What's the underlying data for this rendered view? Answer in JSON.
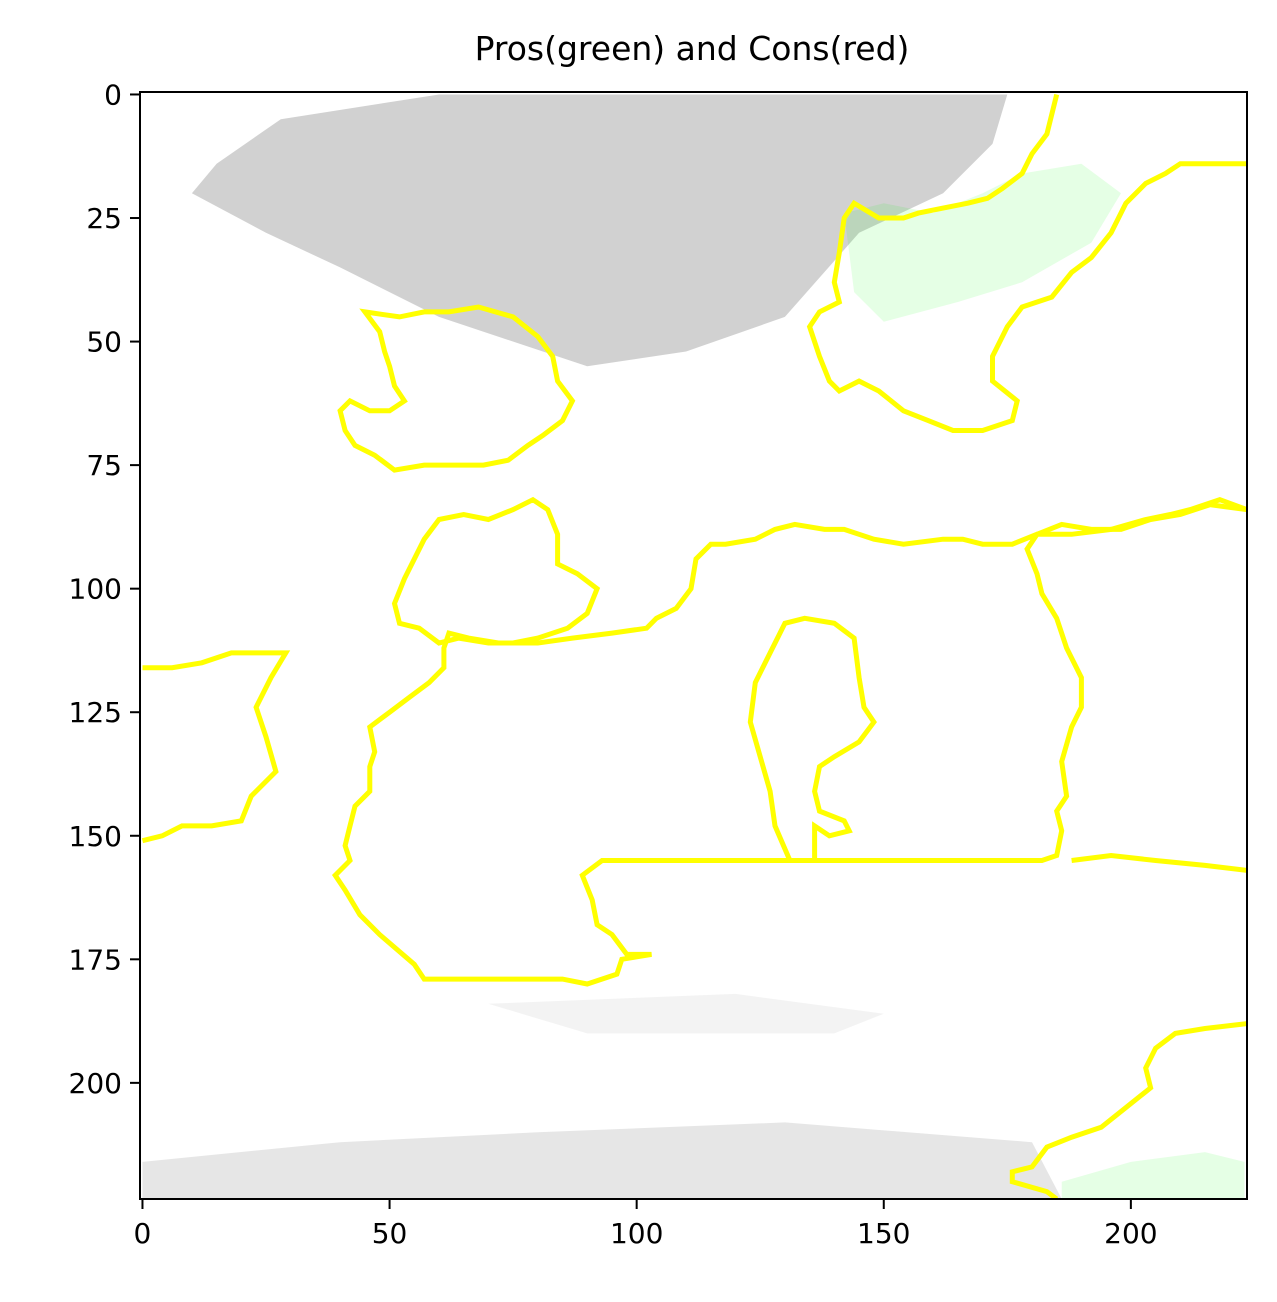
{
  "chart_data": {
    "type": "heatmap",
    "title": "Pros(green) and Cons(red)",
    "xlim": [
      -0.5,
      223.5
    ],
    "ylim": [
      223.5,
      -0.5
    ],
    "x_ticks": [
      0,
      50,
      100,
      150,
      200
    ],
    "y_ticks": [
      0,
      25,
      50,
      75,
      100,
      125,
      150,
      175,
      200
    ],
    "grid": false,
    "boundary_color": "#ffff00",
    "pros_color": "#00ff00",
    "cons_color": "#ff0000",
    "background_color": "#ffffff",
    "shading_color": "#9a9a9a",
    "shading_regions": [
      {
        "name": "top-cloud-band",
        "pts": [
          [
            15,
            14
          ],
          [
            28,
            5
          ],
          [
            60,
            0
          ],
          [
            160,
            0
          ],
          [
            175,
            0
          ],
          [
            172,
            10
          ],
          [
            162,
            20
          ],
          [
            145,
            28
          ],
          [
            130,
            45
          ],
          [
            110,
            52
          ],
          [
            90,
            55
          ],
          [
            60,
            45
          ],
          [
            40,
            35
          ],
          [
            25,
            28
          ],
          [
            10,
            20
          ]
        ],
        "opacity": 0.45
      },
      {
        "name": "bottom-cloud-band",
        "pts": [
          [
            0,
            216
          ],
          [
            40,
            212
          ],
          [
            80,
            210
          ],
          [
            130,
            208
          ],
          [
            180,
            212
          ],
          [
            186,
            223.5
          ],
          [
            0,
            223.5
          ]
        ],
        "opacity": 0.25
      },
      {
        "name": "mid-faint-band",
        "pts": [
          [
            70,
            184
          ],
          [
            120,
            182
          ],
          [
            150,
            186
          ],
          [
            140,
            190
          ],
          [
            90,
            190
          ]
        ],
        "opacity": 0.12
      }
    ],
    "pros_regions": [
      {
        "name": "pros-upper-right",
        "pts": [
          [
            142,
            24
          ],
          [
            150,
            22
          ],
          [
            160,
            24
          ],
          [
            170,
            20
          ],
          [
            178,
            16
          ],
          [
            190,
            14
          ],
          [
            198,
            20
          ],
          [
            192,
            30
          ],
          [
            178,
            38
          ],
          [
            165,
            42
          ],
          [
            150,
            46
          ],
          [
            144,
            40
          ]
        ],
        "opacity": 0.1
      },
      {
        "name": "pros-lower-right",
        "pts": [
          [
            186,
            220
          ],
          [
            200,
            216
          ],
          [
            215,
            214
          ],
          [
            223,
            216
          ],
          [
            223,
            223.5
          ],
          [
            186,
            223.5
          ]
        ],
        "opacity": 0.1
      }
    ],
    "boundaries": [
      {
        "name": "boundary-top-right-lobe",
        "closed": false,
        "pts": [
          [
            185,
            0
          ],
          [
            183,
            8
          ],
          [
            180,
            12
          ],
          [
            178,
            16
          ],
          [
            174,
            19
          ],
          [
            171,
            21
          ],
          [
            167,
            22
          ],
          [
            162,
            23
          ],
          [
            157,
            24
          ],
          [
            154,
            25
          ],
          [
            149,
            25
          ],
          [
            144,
            22
          ],
          [
            142,
            25
          ],
          [
            141,
            32
          ],
          [
            140,
            38
          ],
          [
            141,
            42
          ],
          [
            137,
            44
          ],
          [
            135,
            47
          ],
          [
            137,
            53
          ],
          [
            139,
            58
          ],
          [
            141,
            60
          ],
          [
            145,
            58
          ],
          [
            149,
            60
          ],
          [
            154,
            64
          ],
          [
            159,
            66
          ],
          [
            164,
            68
          ],
          [
            170,
            68
          ],
          [
            176,
            66
          ],
          [
            177,
            62
          ],
          [
            172,
            58
          ],
          [
            172,
            53
          ],
          [
            175,
            47
          ],
          [
            178,
            43
          ],
          [
            184,
            41
          ],
          [
            188,
            36
          ],
          [
            192,
            33
          ],
          [
            196,
            28
          ],
          [
            199,
            22
          ],
          [
            203,
            18
          ],
          [
            207,
            16
          ],
          [
            210,
            14
          ],
          [
            214,
            14
          ],
          [
            218,
            14
          ],
          [
            223.5,
            14
          ]
        ]
      },
      {
        "name": "boundary-left-blob",
        "closed": true,
        "pts": [
          [
            45,
            44
          ],
          [
            52,
            45
          ],
          [
            57,
            44
          ],
          [
            62,
            44
          ],
          [
            68,
            43
          ],
          [
            75,
            45
          ],
          [
            80,
            49
          ],
          [
            83,
            53
          ],
          [
            84,
            58
          ],
          [
            87,
            62
          ],
          [
            85,
            66
          ],
          [
            81,
            69
          ],
          [
            78,
            71
          ],
          [
            74,
            74
          ],
          [
            69,
            75
          ],
          [
            64,
            75
          ],
          [
            57,
            75
          ],
          [
            51,
            76
          ],
          [
            47,
            73
          ],
          [
            43,
            71
          ],
          [
            41,
            68
          ],
          [
            40,
            64
          ],
          [
            42,
            62
          ],
          [
            46,
            64
          ],
          [
            50,
            64
          ],
          [
            53,
            62
          ],
          [
            51,
            59
          ],
          [
            50,
            55
          ],
          [
            49,
            52
          ],
          [
            48,
            48
          ]
        ]
      },
      {
        "name": "boundary-mid-left-blob",
        "closed": true,
        "pts": [
          [
            60,
            86
          ],
          [
            65,
            85
          ],
          [
            70,
            86
          ],
          [
            75,
            84
          ],
          [
            79,
            82
          ],
          [
            82,
            84
          ],
          [
            84,
            89
          ],
          [
            84,
            95
          ],
          [
            88,
            97
          ],
          [
            92,
            100
          ],
          [
            90,
            105
          ],
          [
            86,
            108
          ],
          [
            80,
            110
          ],
          [
            75,
            111
          ],
          [
            70,
            111
          ],
          [
            64,
            110
          ],
          [
            60,
            111
          ],
          [
            56,
            108
          ],
          [
            52,
            107
          ],
          [
            51,
            103
          ],
          [
            53,
            98
          ],
          [
            55,
            94
          ],
          [
            57,
            90
          ]
        ]
      },
      {
        "name": "boundary-left-edge",
        "closed": false,
        "pts": [
          [
            0,
            116
          ],
          [
            6,
            116
          ],
          [
            12,
            115
          ],
          [
            18,
            113
          ],
          [
            24,
            113
          ],
          [
            29,
            113
          ],
          [
            26,
            118
          ],
          [
            23,
            124
          ],
          [
            25,
            130
          ],
          [
            27,
            137
          ],
          [
            22,
            142
          ],
          [
            20,
            147
          ],
          [
            14,
            148
          ],
          [
            8,
            148
          ],
          [
            4,
            150
          ],
          [
            0,
            151
          ]
        ]
      },
      {
        "name": "boundary-center-ring",
        "closed": false,
        "pts": [
          [
            223.5,
            84
          ],
          [
            218,
            82
          ],
          [
            212,
            84
          ],
          [
            208,
            85
          ],
          [
            203,
            86
          ],
          [
            196,
            88
          ],
          [
            188,
            89
          ],
          [
            181,
            89
          ],
          [
            176,
            91
          ],
          [
            170,
            91
          ],
          [
            166,
            90
          ],
          [
            162,
            90
          ],
          [
            154,
            91
          ],
          [
            148,
            90
          ],
          [
            142,
            88
          ],
          [
            138,
            88
          ],
          [
            132,
            87
          ],
          [
            128,
            88
          ],
          [
            124,
            90
          ],
          [
            118,
            91
          ],
          [
            115,
            91
          ],
          [
            112,
            94
          ],
          [
            111,
            100
          ],
          [
            108,
            104
          ],
          [
            104,
            106
          ],
          [
            102,
            108
          ],
          [
            95,
            109
          ],
          [
            87,
            110
          ],
          [
            80,
            111
          ],
          [
            72,
            111
          ],
          [
            66,
            110
          ],
          [
            62,
            109
          ],
          [
            61,
            112
          ],
          [
            61,
            116
          ],
          [
            58,
            119
          ],
          [
            54,
            122
          ],
          [
            50,
            125
          ],
          [
            46,
            128
          ],
          [
            47,
            133
          ],
          [
            46,
            136
          ],
          [
            46,
            141
          ],
          [
            43,
            144
          ],
          [
            42,
            148
          ],
          [
            41,
            152
          ],
          [
            42,
            155
          ],
          [
            39,
            158
          ],
          [
            41,
            161
          ],
          [
            44,
            166
          ],
          [
            48,
            170
          ],
          [
            55,
            176
          ],
          [
            57,
            179
          ],
          [
            64,
            179
          ],
          [
            75,
            179
          ],
          [
            85,
            179
          ],
          [
            90,
            180
          ],
          [
            96,
            178
          ],
          [
            97,
            175
          ],
          [
            103,
            174
          ],
          [
            98,
            174
          ],
          [
            95,
            170
          ],
          [
            92,
            168
          ],
          [
            91,
            163
          ],
          [
            89,
            158
          ],
          [
            93,
            155
          ],
          [
            100,
            155
          ],
          [
            110,
            155
          ],
          [
            120,
            155
          ],
          [
            130,
            155
          ],
          [
            135,
            155
          ],
          [
            145,
            155
          ],
          [
            155,
            155
          ],
          [
            165,
            155
          ],
          [
            170,
            155
          ],
          [
            182,
            155
          ],
          [
            185,
            154
          ],
          [
            186,
            149
          ],
          [
            185,
            145
          ],
          [
            187,
            142
          ],
          [
            186,
            135
          ],
          [
            188,
            128
          ],
          [
            190,
            124
          ],
          [
            190,
            118
          ],
          [
            187,
            112
          ],
          [
            185,
            106
          ],
          [
            182,
            101
          ],
          [
            181,
            97
          ],
          [
            179,
            92
          ],
          [
            181,
            89
          ]
        ]
      },
      {
        "name": "boundary-right-lobe",
        "closed": false,
        "pts": [
          [
            181,
            89
          ],
          [
            186,
            87
          ],
          [
            192,
            88
          ],
          [
            198,
            88
          ],
          [
            204,
            86
          ],
          [
            210,
            85
          ],
          [
            216,
            83
          ],
          [
            223.5,
            84
          ]
        ]
      },
      {
        "name": "boundary-inner-stem",
        "closed": false,
        "pts": [
          [
            131,
            155
          ],
          [
            128,
            148
          ],
          [
            127,
            141
          ],
          [
            125,
            134
          ],
          [
            123,
            127
          ],
          [
            124,
            119
          ],
          [
            127,
            113
          ],
          [
            130,
            107
          ],
          [
            134,
            106
          ],
          [
            140,
            107
          ],
          [
            144,
            110
          ],
          [
            145,
            118
          ],
          [
            146,
            124
          ],
          [
            148,
            127
          ],
          [
            145,
            131
          ],
          [
            140,
            134
          ],
          [
            137,
            136
          ],
          [
            136,
            141
          ],
          [
            137,
            145
          ],
          [
            142,
            147
          ],
          [
            143,
            149
          ],
          [
            139,
            150
          ],
          [
            136,
            148
          ],
          [
            136,
            153
          ],
          [
            136,
            155
          ]
        ]
      },
      {
        "name": "boundary-bottom-right",
        "closed": false,
        "pts": [
          [
            223.5,
            157
          ],
          [
            215,
            156
          ],
          [
            205,
            155
          ],
          [
            196,
            154
          ],
          [
            188,
            155
          ]
        ]
      },
      {
        "name": "boundary-bottom-right-lobe",
        "closed": false,
        "pts": [
          [
            223.5,
            188
          ],
          [
            215,
            189
          ],
          [
            209,
            190
          ],
          [
            205,
            193
          ],
          [
            203,
            197
          ],
          [
            204,
            201
          ],
          [
            199,
            205
          ],
          [
            194,
            209
          ],
          [
            188,
            211
          ],
          [
            183,
            213
          ],
          [
            180,
            217
          ],
          [
            176,
            218
          ],
          [
            176,
            220
          ],
          [
            183,
            222
          ],
          [
            185,
            223.5
          ]
        ]
      }
    ]
  }
}
